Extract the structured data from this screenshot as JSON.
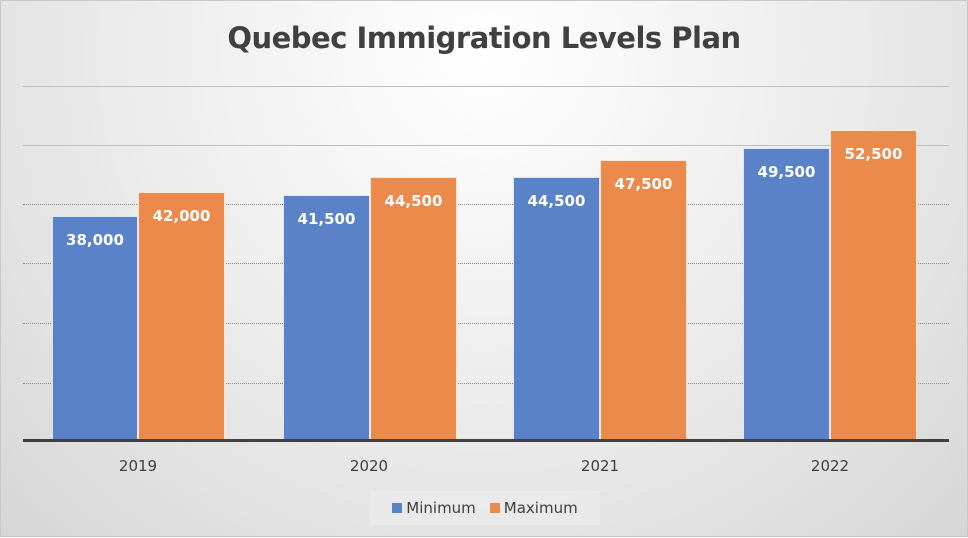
{
  "chart_data": {
    "type": "bar",
    "title": "Quebec Immigration Levels Plan",
    "categories": [
      "2019",
      "2020",
      "2021",
      "2022"
    ],
    "series": [
      {
        "name": "Minimum",
        "color": "#5a82c9",
        "values": [
          38000,
          41500,
          44500,
          49500
        ],
        "labels": [
          "38,000",
          "41,500",
          "44,500",
          "49,500"
        ]
      },
      {
        "name": "Maximum",
        "color": "#eb8a4a",
        "values": [
          42000,
          44500,
          47500,
          52500
        ],
        "labels": [
          "42,000",
          "44,500",
          "47,500",
          "52,500"
        ]
      }
    ],
    "xlabel": "",
    "ylabel": "",
    "ylim": [
      0,
      60000
    ],
    "grid": true,
    "y_axis_labels_visible": false,
    "legend_position": "bottom",
    "data_labels": true
  },
  "legend": {
    "items": [
      {
        "label": "Minimum",
        "color": "#5a82c9"
      },
      {
        "label": "Maximum",
        "color": "#eb8a4a"
      }
    ]
  }
}
